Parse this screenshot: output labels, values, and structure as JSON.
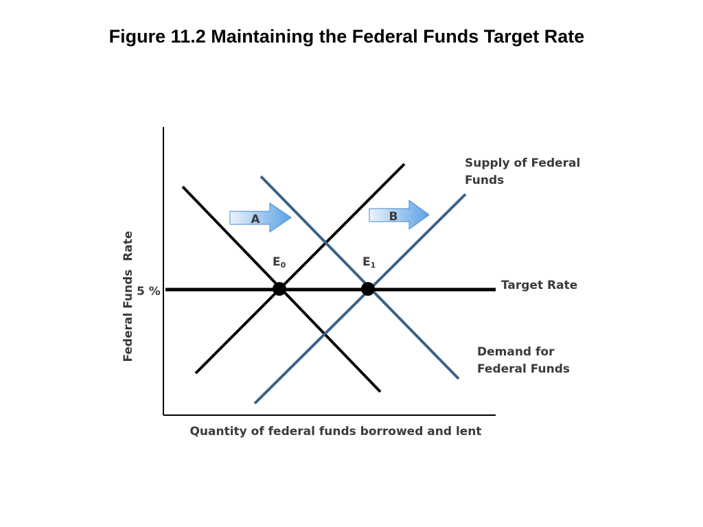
{
  "title": "Figure 11.2 Maintaining the Federal Funds Target Rate",
  "colors": {
    "old_curves": "#000000",
    "new_curves": "#3b6185",
    "target_line": "#000000",
    "arrow_fill_light": "#ecf3fb",
    "arrow_fill_dark": "#5aa2e6",
    "arrow_stroke": "#4a87c4"
  },
  "chart_data": {
    "type": "line",
    "xlabel": "Quantity of federal funds borrowed and lent",
    "ylabel": "Federal Funds  Rate",
    "y_tick_label": "5 %",
    "target_rate_label": "Target Rate",
    "supply_label": [
      "Supply of Federal",
      "Funds"
    ],
    "demand_label": [
      "Demand for",
      "Federal Funds"
    ],
    "arrows": [
      {
        "label": "A"
      },
      {
        "label": "B"
      }
    ],
    "equilibria": [
      {
        "name": "E",
        "sub": "0"
      },
      {
        "name": "E",
        "sub": "1"
      }
    ]
  }
}
